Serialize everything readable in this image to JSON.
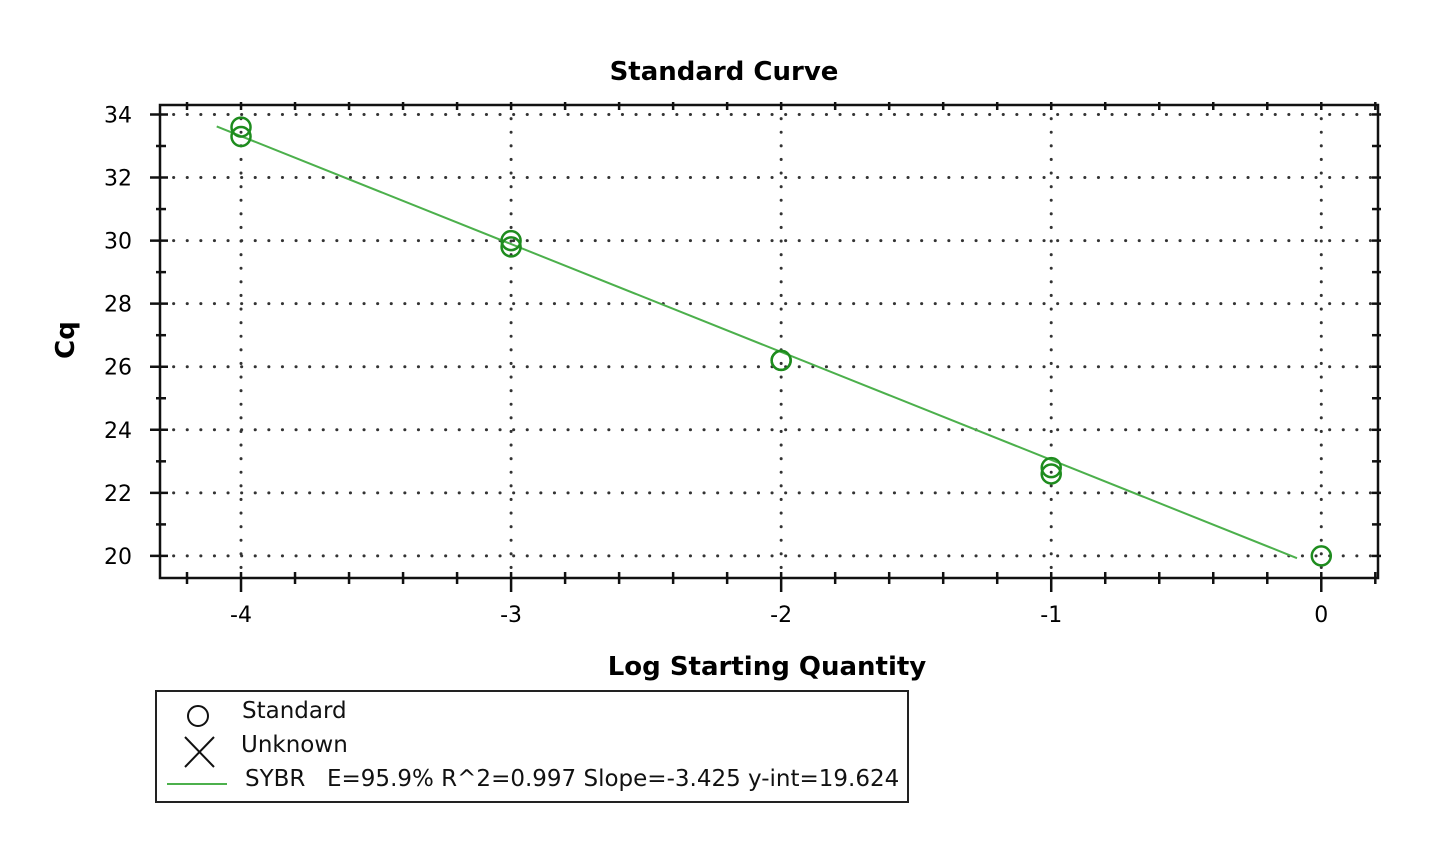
{
  "chart_data": {
    "type": "scatter",
    "title": "Standard Curve",
    "xlabel": "Log Starting Quantity",
    "ylabel": "Cq",
    "xlim": [
      -4.3,
      0.21
    ],
    "ylim": [
      19.3,
      34.3
    ],
    "xticks": [
      -4,
      -3,
      -2,
      -1,
      0
    ],
    "yticks": [
      20,
      22,
      24,
      26,
      28,
      30,
      32,
      34
    ],
    "grid": true,
    "series": [
      {
        "name": "Standard",
        "marker": "circle",
        "color": "#1e8c1e",
        "points": [
          [
            -4,
            33.6
          ],
          [
            -4,
            33.3
          ],
          [
            -3,
            30.0
          ],
          [
            -3,
            29.8
          ],
          [
            -2,
            26.2
          ],
          [
            -2,
            26.2
          ],
          [
            -1,
            22.8
          ],
          [
            -1,
            22.6
          ],
          [
            0,
            20.0
          ]
        ]
      },
      {
        "name": "SYBR",
        "type": "line",
        "color": "#4cb04c",
        "points": [
          [
            -4.09,
            33.62
          ],
          [
            -0.09,
            19.93
          ]
        ]
      }
    ],
    "legend": {
      "position": "bottom-left",
      "entries": [
        {
          "label": "Standard",
          "icon": "circle-icon"
        },
        {
          "label": "Unknown",
          "icon": "x-icon"
        },
        {
          "label": "SYBR",
          "stats": "E=95.9% R^2=0.997 Slope=-3.425 y-int=19.624",
          "icon": "line-icon"
        }
      ]
    }
  }
}
